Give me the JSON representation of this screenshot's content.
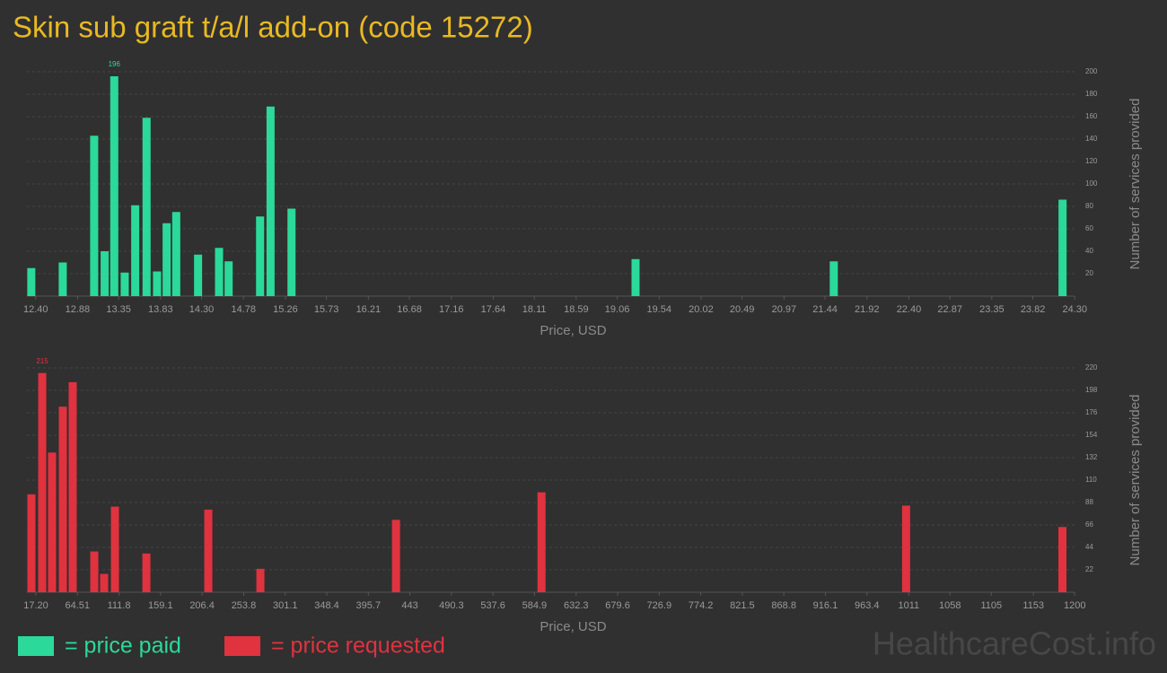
{
  "title": "Skin sub graft t/a/l add-on (code 15272)",
  "chart_data": [
    {
      "type": "bar",
      "xlabel": "Price, USD",
      "ylabel": "Number of services provided",
      "color": "#2bd99a",
      "grid": true,
      "x": [
        12.35,
        12.71,
        13.07,
        13.19,
        13.3,
        13.42,
        13.54,
        13.67,
        13.79,
        13.9,
        14.01,
        14.26,
        14.5,
        14.61,
        14.97,
        15.09,
        15.33,
        19.27,
        21.54,
        24.16
      ],
      "values": [
        25,
        30,
        143,
        40,
        196,
        21,
        81,
        159,
        22,
        65,
        75,
        37,
        43,
        31,
        71,
        169,
        78,
        33,
        31,
        86
      ],
      "xlim": [
        12.3,
        24.4
      ],
      "ylim": [
        0,
        200
      ],
      "xticks": [
        {
          "value": 12.4,
          "label": "12.40"
        },
        12.88,
        13.35,
        13.83,
        {
          "value": 14.3,
          "label": "14.30"
        },
        14.78,
        15.26,
        15.73,
        16.21,
        16.68,
        17.16,
        17.64,
        18.11,
        18.59,
        19.06,
        19.54,
        20.02,
        20.49,
        20.97,
        21.44,
        21.92,
        {
          "value": 22.4,
          "label": "22.40"
        },
        22.87,
        23.35,
        23.82,
        {
          "value": 24.3,
          "label": "24.30"
        }
      ],
      "yticks": [
        20,
        40,
        60,
        80,
        100,
        120,
        140,
        160,
        180,
        200
      ]
    },
    {
      "type": "bar",
      "xlabel": "Price, USD",
      "ylabel": "Number of services provided",
      "color": "#e0323f",
      "grid": true,
      "x": [
        12.1,
        24.4,
        35.6,
        47.9,
        59.1,
        83.7,
        94.9,
        107.2,
        143,
        213.5,
        272.8,
        427.2,
        592.9,
        1008,
        1186
      ],
      "values": [
        96,
        215,
        137,
        182,
        206,
        40,
        18,
        84,
        38,
        81,
        23,
        71,
        98,
        85,
        64
      ],
      "xlim": [
        7,
        1210
      ],
      "ylim": [
        0,
        220
      ],
      "xticks": [
        {
          "value": 17.2,
          "label": "17.20"
        },
        64.51,
        111.8,
        159.1,
        206.4,
        253.8,
        301.1,
        348.4,
        395.7,
        443,
        490.3,
        537.6,
        584.9,
        632.3,
        679.6,
        726.9,
        774.2,
        821.5,
        868.8,
        916.1,
        963.4,
        1011,
        1058,
        1105,
        1153,
        1200
      ],
      "yticks": [
        22,
        44,
        66,
        88,
        110,
        132,
        154,
        176,
        198,
        220
      ]
    }
  ],
  "legend": [
    {
      "label": "= price paid",
      "color": "#2bd99a"
    },
    {
      "label": "= price requested",
      "color": "#e0323f"
    }
  ],
  "watermark": "HealthcareCost.info"
}
